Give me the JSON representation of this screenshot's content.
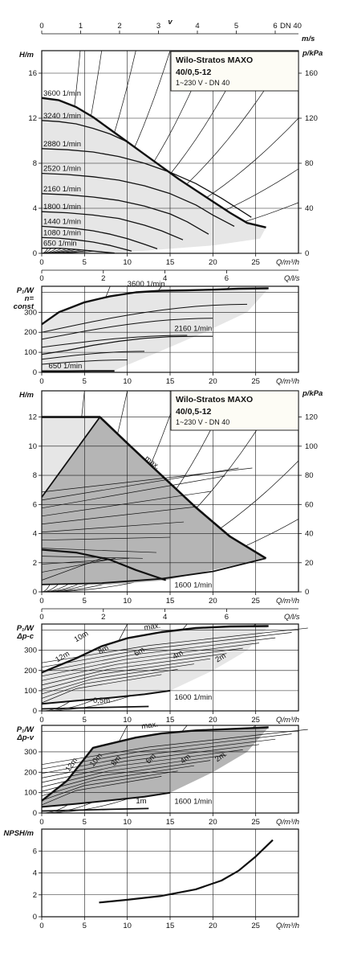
{
  "chart_data": [
    {
      "id": "velocity_scale",
      "type": "axis",
      "title": "v",
      "unit": "m/s",
      "ticks": [
        "0",
        "1",
        "2",
        "3",
        "4",
        "5",
        "6"
      ],
      "note": "DN 40"
    },
    {
      "id": "H_Q_const",
      "type": "line",
      "title": "Wilo-Stratos MAXO",
      "subtitle_lines": [
        "40/0,5-12",
        "1~230 V - DN 40"
      ],
      "ylabel": "H/m",
      "y2label": "p/kPa",
      "xlabel": "Q/m³/h",
      "x2label": "Q/l/s",
      "xlim": [
        0,
        30
      ],
      "ylim": [
        0,
        18
      ],
      "yticks": [
        "0",
        "4",
        "8",
        "12",
        "16"
      ],
      "y2ticks": [
        "0",
        "40",
        "80",
        "120",
        "160"
      ],
      "xticks": [
        "0",
        "5",
        "10",
        "15",
        "20",
        "25"
      ],
      "x2ticks": [
        "0",
        "2",
        "4",
        "6"
      ],
      "series": [
        {
          "name": "3600 1/min",
          "x": [
            0,
            2,
            4,
            6,
            8,
            10,
            12,
            14,
            16,
            18,
            20,
            22,
            24,
            26.2
          ],
          "y": [
            13.8,
            13.6,
            13.0,
            12.1,
            11.0,
            9.9,
            8.8,
            7.7,
            6.6,
            5.6,
            4.6,
            3.6,
            2.7,
            2.3
          ]
        },
        {
          "name": "3240 1/min",
          "x": [
            0,
            2,
            4,
            6,
            8,
            10,
            12,
            14,
            16,
            18,
            20,
            22,
            24,
            26.2
          ],
          "y": [
            11.8,
            11.7,
            11.5,
            11.1,
            10.6,
            9.9,
            8.8,
            7.7,
            6.6,
            5.6,
            4.6,
            3.6,
            2.7,
            2.3
          ]
        },
        {
          "name": "2880 1/min",
          "x": [
            0,
            3,
            6,
            9,
            12,
            15,
            18,
            21,
            24.5
          ],
          "y": [
            9.3,
            9.2,
            9.0,
            8.6,
            8.0,
            7.2,
            6.2,
            4.9,
            3.2
          ]
        },
        {
          "name": "2520 1/min",
          "x": [
            0,
            3,
            6,
            9,
            12,
            15,
            18,
            20,
            22.5
          ],
          "y": [
            7.1,
            7.0,
            6.8,
            6.5,
            6.0,
            5.3,
            4.3,
            3.4,
            2.4
          ]
        },
        {
          "name": "2160 1/min",
          "x": [
            0,
            3,
            6,
            9,
            12,
            15,
            17,
            19.5
          ],
          "y": [
            5.3,
            5.2,
            5.0,
            4.7,
            4.2,
            3.5,
            2.8,
            1.7
          ]
        },
        {
          "name": "1800 1/min",
          "x": [
            0,
            3,
            6,
            9,
            12,
            14,
            16.5
          ],
          "y": [
            3.7,
            3.6,
            3.4,
            3.1,
            2.5,
            2.0,
            1.2
          ]
        },
        {
          "name": "1440 1/min",
          "x": [
            0,
            2,
            4,
            6,
            8,
            10,
            12,
            13.5
          ],
          "y": [
            2.4,
            2.3,
            2.2,
            2.0,
            1.7,
            1.3,
            0.8,
            0.4
          ]
        },
        {
          "name": "1080 1/min",
          "x": [
            0,
            2,
            4,
            6,
            8,
            10.5
          ],
          "y": [
            1.4,
            1.35,
            1.2,
            1.0,
            0.7,
            0.2
          ]
        },
        {
          "name": "650 1/min",
          "x": [
            0,
            2,
            4,
            6,
            8.5
          ],
          "y": [
            0.45,
            0.45,
            0.35,
            0.2,
            0.02
          ]
        }
      ]
    },
    {
      "id": "P_Q_const",
      "type": "line",
      "ylabel": "P₁/W",
      "ylabel_2": "n=",
      "ylabel_3": "const",
      "xlabel": "Q/m³/h",
      "x2label": "Q/l/s",
      "xlim": [
        0,
        30
      ],
      "ylim": [
        0,
        430
      ],
      "yticks": [
        "0",
        "100",
        "200",
        "300"
      ],
      "xticks": [
        "0",
        "5",
        "10",
        "15",
        "20",
        "25"
      ],
      "x2ticks": [
        "0",
        "2",
        "4",
        "6"
      ],
      "series": [
        {
          "name": "3600 1/min",
          "x": [
            0,
            2,
            5,
            8,
            11,
            14,
            17,
            20,
            23,
            26.5
          ],
          "y": [
            240,
            300,
            350,
            380,
            400,
            408,
            410,
            413,
            418,
            420
          ]
        },
        {
          "name": "2160 1/min",
          "x": [
            0,
            3,
            6,
            9,
            12,
            15,
            18,
            20
          ],
          "y": [
            90,
            110,
            135,
            155,
            170,
            178,
            180,
            180
          ]
        },
        {
          "name": "650 1/min",
          "x": [
            0,
            3,
            6,
            8.5
          ],
          "y": [
            6,
            6,
            7,
            7
          ]
        }
      ],
      "annotations": [
        "3600 1/min",
        "2160 1/min",
        "650 1/min"
      ]
    },
    {
      "id": "H_Q_max",
      "type": "line",
      "title": "Wilo-Stratos MAXO",
      "subtitle_lines": [
        "40/0,5-12",
        "1~230 V - DN 40"
      ],
      "ylabel": "H/m",
      "y2label": "p/kPa",
      "xlabel": "Q/m³/h",
      "x2label": "Q/l/s",
      "xlim": [
        0,
        30
      ],
      "ylim": [
        0,
        13.8
      ],
      "yticks": [
        "0",
        "2",
        "4",
        "6",
        "8",
        "10",
        "12"
      ],
      "y2ticks": [
        "0",
        "20",
        "40",
        "60",
        "80",
        "100",
        "120"
      ],
      "xticks": [
        "0",
        "5",
        "10",
        "15",
        "20",
        "25"
      ],
      "x2ticks": [
        "0",
        "2",
        "4",
        "6"
      ],
      "series": [
        {
          "name": "max.",
          "x": [
            0,
            6.8,
            10,
            14,
            18,
            22,
            26.2
          ],
          "y": [
            12,
            12,
            10.2,
            8,
            5.8,
            3.8,
            2.3
          ]
        },
        {
          "name": "1600 1/min",
          "x": [
            0,
            4,
            8,
            11,
            14.5
          ],
          "y": [
            2.9,
            2.7,
            2.2,
            1.5,
            0.8
          ]
        }
      ],
      "annotations": [
        "max.",
        "1600 1/min"
      ]
    },
    {
      "id": "P_Q_dpc",
      "type": "line",
      "ylabel": "P₁/W",
      "ylabel_2": "Δp-c",
      "xlabel": "Q/m³/h",
      "xlim": [
        0,
        30
      ],
      "ylim": [
        0,
        430
      ],
      "yticks": [
        "0",
        "100",
        "200",
        "300"
      ],
      "xticks": [
        "0",
        "5",
        "10",
        "15",
        "20",
        "25"
      ],
      "series": [
        {
          "name": "max.",
          "x": [
            0,
            4,
            7,
            10,
            14,
            18,
            22,
            26.5
          ],
          "y": [
            190,
            260,
            320,
            360,
            390,
            410,
            418,
            420
          ]
        },
        {
          "name": "1600 1/min",
          "x": [
            0,
            4,
            8,
            12,
            15
          ],
          "y": [
            35,
            50,
            65,
            82,
            100
          ]
        }
      ],
      "annotations": [
        "max.",
        "12m",
        "10m",
        "8m",
        "6m",
        "4m",
        "2m",
        "0,5m",
        "1600 1/min"
      ]
    },
    {
      "id": "P_Q_dpv",
      "type": "line",
      "ylabel": "P₁/W",
      "ylabel_2": "Δp-v",
      "xlabel": "Q/m³/h",
      "xlim": [
        0,
        30
      ],
      "ylim": [
        0,
        430
      ],
      "yticks": [
        "0",
        "100",
        "200",
        "300"
      ],
      "xticks": [
        "0",
        "5",
        "10",
        "15",
        "20",
        "25"
      ],
      "series": [
        {
          "name": "max.",
          "x": [
            0,
            3,
            6,
            8,
            11,
            14,
            18,
            22,
            26.5
          ],
          "y": [
            60,
            160,
            320,
            340,
            370,
            390,
            405,
            412,
            420
          ]
        },
        {
          "name": "1600 1/min",
          "x": [
            0,
            4,
            8,
            12,
            15
          ],
          "y": [
            30,
            45,
            62,
            80,
            100
          ]
        }
      ],
      "annotations": [
        "max.",
        "12m",
        "10m",
        "8m",
        "6m",
        "4m",
        "2m",
        "1m",
        "1600 1/min"
      ]
    },
    {
      "id": "NPSH",
      "type": "line",
      "ylabel": "NPSH/m",
      "xlabel": "Q/m³/h",
      "xlim": [
        0,
        30
      ],
      "ylim": [
        0,
        8
      ],
      "yticks": [
        "0",
        "2",
        "4",
        "6"
      ],
      "xticks": [
        "0",
        "5",
        "10",
        "15",
        "20",
        "25"
      ],
      "series": [
        {
          "name": "",
          "x": [
            6.7,
            10,
            14,
            18,
            21,
            23,
            25,
            27
          ],
          "y": [
            1.3,
            1.55,
            1.9,
            2.5,
            3.3,
            4.2,
            5.5,
            7.0
          ]
        }
      ]
    }
  ],
  "colors": {
    "light_fill": "#e6e6e6",
    "dark_fill": "#b5b5b5",
    "ink": "#111111",
    "grid": "#1a1a1a",
    "title_box": "#fdfcf5"
  }
}
